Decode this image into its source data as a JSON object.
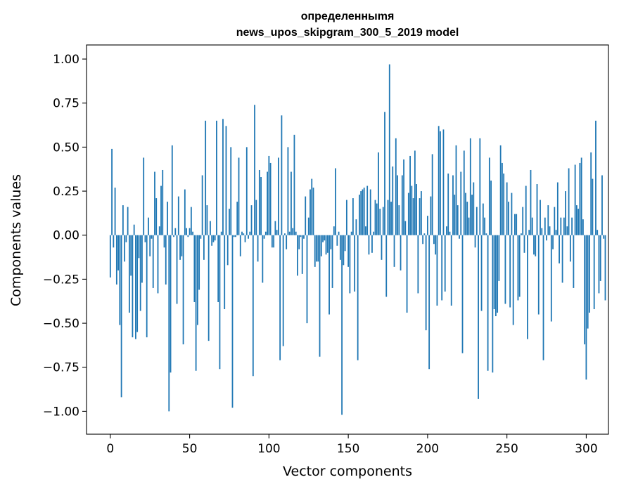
{
  "chart_data": {
    "type": "bar",
    "title_lines": [
      "определенныmя",
      "news_upos_skipgram_300_5_2019 model"
    ],
    "xlabel": "Vector components",
    "ylabel": "Components values",
    "xlim": [
      -15,
      314
    ],
    "ylim": [
      -1.13,
      1.08
    ],
    "xticks": [
      0,
      50,
      100,
      150,
      200,
      250,
      300
    ],
    "yticks": [
      1.0,
      0.75,
      0.5,
      0.25,
      0.0,
      -0.25,
      -0.5,
      -0.75,
      -1.0
    ],
    "ytick_labels": [
      "1.00",
      "0.75",
      "0.50",
      "0.25",
      "0.00",
      "−0.25",
      "−0.50",
      "−0.75",
      "−1.00"
    ],
    "xtick_labels": [
      "0",
      "50",
      "100",
      "150",
      "200",
      "250",
      "300"
    ],
    "bar_color": "#1f77b4",
    "grid": false,
    "legend": "none",
    "values": [
      -0.24,
      0.49,
      -0.07,
      0.27,
      -0.28,
      -0.2,
      -0.51,
      -0.92,
      0.17,
      -0.15,
      -0.04,
      0.16,
      -0.44,
      -0.23,
      -0.58,
      0.06,
      -0.59,
      -0.55,
      -0.13,
      -0.43,
      -0.27,
      0.44,
      -0.04,
      -0.58,
      0.1,
      -0.12,
      -0.02,
      -0.3,
      0.36,
      0.21,
      -0.33,
      0.05,
      0.28,
      0.37,
      -0.07,
      -0.28,
      0.19,
      -1.0,
      -0.78,
      0.51,
      -0.01,
      0.04,
      -0.39,
      0.22,
      -0.14,
      -0.12,
      -0.62,
      0.26,
      0.04,
      -0.01,
      0.04,
      0.16,
      0.02,
      -0.38,
      -0.77,
      -0.51,
      -0.31,
      -0.02,
      0.34,
      -0.14,
      0.65,
      0.17,
      -0.6,
      0.08,
      -0.06,
      -0.04,
      -0.03,
      0.65,
      -0.38,
      -0.76,
      0.02,
      0.66,
      -0.42,
      0.62,
      -0.17,
      0.15,
      0.5,
      -0.98,
      -0.01,
      -0.01,
      0.19,
      0.44,
      -0.12,
      0.02,
      0.01,
      -0.04,
      0.5,
      -0.02,
      0.02,
      0.17,
      -0.8,
      0.74,
      0.2,
      -0.15,
      0.37,
      0.33,
      -0.27,
      -0.02,
      0.02,
      0.36,
      0.45,
      0.41,
      -0.07,
      -0.07,
      0.08,
      0.03,
      0.44,
      -0.71,
      0.68,
      -0.63,
      0.01,
      -0.08,
      0.5,
      0.02,
      0.36,
      0.04,
      0.57,
      0.02,
      -0.23,
      -0.08,
      -0.01,
      -0.22,
      -0.02,
      0.22,
      -0.5,
      0.1,
      0.26,
      0.32,
      0.27,
      -0.18,
      -0.15,
      -0.15,
      -0.69,
      -0.12,
      -0.04,
      -0.03,
      -0.11,
      -0.1,
      -0.45,
      -0.08,
      -0.3,
      0.05,
      0.38,
      -0.06,
      0.02,
      -0.14,
      -1.02,
      -0.17,
      -0.09,
      0.2,
      -0.18,
      -0.33,
      0.02,
      0.21,
      -0.32,
      0.09,
      -0.71,
      0.23,
      0.25,
      0.26,
      0.27,
      0.05,
      0.28,
      -0.11,
      0.26,
      -0.1,
      0.02,
      0.2,
      0.18,
      0.47,
      0.15,
      -0.14,
      0.16,
      0.7,
      -0.35,
      0.2,
      0.97,
      0.19,
      0.39,
      -0.18,
      0.55,
      0.34,
      0.17,
      -0.2,
      0.34,
      0.43,
      0.08,
      -0.44,
      0.24,
      0.45,
      0.28,
      0.21,
      0.48,
      0.29,
      -0.33,
      0.21,
      0.25,
      -0.05,
      0.01,
      -0.54,
      0.11,
      -0.76,
      0.22,
      0.46,
      -0.05,
      -0.11,
      -0.4,
      0.62,
      0.59,
      -0.37,
      0.6,
      -0.32,
      0.05,
      0.35,
      0.02,
      -0.4,
      0.34,
      0.23,
      0.51,
      0.17,
      -0.02,
      0.36,
      -0.67,
      0.48,
      0.24,
      0.19,
      0.1,
      0.55,
      0.23,
      0.3,
      -0.07,
      0.16,
      -0.93,
      0.55,
      -0.43,
      0.18,
      0.1,
      0.01,
      -0.77,
      0.44,
      0.31,
      -0.78,
      -0.42,
      -0.46,
      -0.44,
      -0.26,
      0.51,
      0.41,
      0.35,
      -0.39,
      0.3,
      0.19,
      -0.41,
      0.24,
      -0.51,
      0.12,
      0.12,
      -0.37,
      -0.35,
      0.01,
      0.16,
      -0.1,
      0.28,
      -0.59,
      0.03,
      0.37,
      0.1,
      -0.11,
      -0.12,
      0.29,
      -0.45,
      0.2,
      0.04,
      -0.71,
      0.1,
      -0.03,
      0.17,
      0.05,
      -0.49,
      -0.08,
      0.16,
      0.03,
      0.3,
      -0.16,
      0.1,
      -0.27,
      0.1,
      0.25,
      0.05,
      0.38,
      -0.15,
      0.1,
      -0.3,
      0.4,
      0.17,
      0.15,
      0.41,
      0.44,
      0.09,
      -0.62,
      -0.82,
      -0.53,
      -0.44,
      0.47,
      0.32,
      -0.42,
      0.65,
      0.03,
      -0.33,
      -0.26,
      0.34,
      -0.02,
      -0.37
    ]
  }
}
